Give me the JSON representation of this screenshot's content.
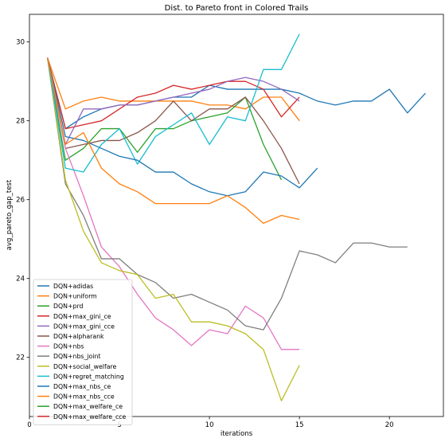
{
  "chart_data": {
    "type": "line",
    "title": "Dist. to Pareto front in Colored Trails",
    "xlabel": "iterations",
    "ylabel": "avg_pareto_gap_test",
    "xlim": [
      0,
      23
    ],
    "ylim": [
      20.5,
      30.7
    ],
    "xticks": [
      0,
      5,
      10,
      15,
      20
    ],
    "yticks": [
      22,
      24,
      26,
      28,
      30
    ],
    "grid": false,
    "legend_position": "lower-left",
    "series": [
      {
        "name": "DQN+adidas",
        "color": "#1f77b4",
        "x": [
          1,
          2,
          3,
          4,
          5,
          6,
          7,
          8,
          9,
          10,
          11,
          12,
          13,
          14,
          15,
          16,
          17,
          18,
          19,
          20,
          21,
          22
        ],
        "y": [
          29.6,
          27.8,
          28.1,
          28.3,
          28.4,
          28.4,
          28.5,
          28.6,
          28.6,
          28.9,
          28.8,
          28.8,
          28.8,
          28.8,
          28.7,
          28.5,
          28.4,
          28.5,
          28.5,
          28.8,
          28.2,
          28.7
        ]
      },
      {
        "name": "DQN+uniform",
        "color": "#ff7f0e",
        "x": [
          1,
          2,
          3,
          4,
          5,
          6,
          7,
          8,
          9,
          10,
          11,
          12,
          13,
          14,
          15
        ],
        "y": [
          29.6,
          28.3,
          28.5,
          28.6,
          28.5,
          28.5,
          28.5,
          28.5,
          28.5,
          28.4,
          28.4,
          28.3,
          28.6,
          28.6,
          28.0
        ]
      },
      {
        "name": "DQN+prd",
        "color": "#2ca02c",
        "x": [
          1,
          2,
          3,
          4,
          5,
          6,
          7,
          8,
          9,
          10,
          11,
          12,
          13,
          14
        ],
        "y": [
          29.6,
          27.0,
          27.3,
          27.8,
          27.8,
          27.2,
          27.8,
          27.8,
          28.0,
          28.1,
          28.2,
          28.6,
          27.4,
          26.5
        ]
      },
      {
        "name": "DQN+max_gini_ce",
        "color": "#d62728",
        "x": [
          1,
          2,
          3,
          4,
          5,
          6,
          7,
          8,
          9,
          10,
          11,
          12,
          13,
          14,
          15
        ],
        "y": [
          29.6,
          27.8,
          27.9,
          28.0,
          28.3,
          28.6,
          28.7,
          28.9,
          28.8,
          28.9,
          29.0,
          29.0,
          28.8,
          28.1,
          28.6
        ]
      },
      {
        "name": "DQN+max_gini_cce",
        "color": "#9467bd",
        "x": [
          1,
          2,
          3,
          4,
          5,
          6,
          7,
          8,
          9,
          10,
          11,
          12,
          13,
          14,
          15
        ],
        "y": [
          29.6,
          27.4,
          28.3,
          28.3,
          28.4,
          28.4,
          28.5,
          28.6,
          28.7,
          28.8,
          29.0,
          29.1,
          29.0,
          28.8,
          28.5
        ]
      },
      {
        "name": "DQN+alpharank",
        "color": "#8c564b",
        "x": [
          1,
          2,
          3,
          4,
          5,
          6,
          7,
          8,
          9,
          10,
          11,
          12,
          13,
          14,
          15
        ],
        "y": [
          29.6,
          27.3,
          27.4,
          27.5,
          27.5,
          27.7,
          28.0,
          28.5,
          28.0,
          28.3,
          28.3,
          28.6,
          28.0,
          27.3,
          26.4
        ]
      },
      {
        "name": "DQN+nbs",
        "color": "#e377c2",
        "x": [
          1,
          2,
          3,
          4,
          5,
          6,
          7,
          8,
          9,
          10,
          11,
          12,
          13,
          14,
          15
        ],
        "y": [
          29.6,
          27.3,
          26.1,
          24.8,
          24.3,
          23.6,
          23.0,
          22.7,
          22.3,
          22.7,
          22.6,
          23.3,
          23.0,
          22.2,
          22.2
        ]
      },
      {
        "name": "DQN+nbs_joint",
        "color": "#7f7f7f",
        "x": [
          1,
          2,
          3,
          4,
          5,
          6,
          7,
          8,
          9,
          10,
          11,
          12,
          13,
          14,
          15,
          16,
          17,
          18,
          19,
          20,
          21
        ],
        "y": [
          29.6,
          26.4,
          25.6,
          24.5,
          24.5,
          24.1,
          23.9,
          23.5,
          23.6,
          23.4,
          23.2,
          22.8,
          22.7,
          23.5,
          24.7,
          24.6,
          24.4,
          24.9,
          24.9,
          24.8,
          24.8
        ]
      },
      {
        "name": "DQN+social_welfare",
        "color": "#bcbd22",
        "x": [
          1,
          2,
          3,
          4,
          5,
          6,
          7,
          8,
          9,
          10,
          11,
          12,
          13,
          14,
          15
        ],
        "y": [
          29.6,
          26.5,
          25.2,
          24.4,
          24.2,
          24.1,
          23.5,
          23.6,
          22.9,
          22.9,
          22.8,
          22.6,
          22.2,
          20.9,
          21.8
        ]
      },
      {
        "name": "DQN+regret_matching",
        "color": "#17becf",
        "x": [
          1,
          2,
          3,
          4,
          5,
          6,
          7,
          8,
          9,
          10,
          11,
          12,
          13,
          14,
          15
        ],
        "y": [
          29.6,
          26.8,
          26.7,
          27.4,
          27.8,
          26.9,
          27.6,
          27.9,
          28.2,
          27.4,
          28.1,
          28.0,
          29.3,
          29.3,
          30.2
        ]
      },
      {
        "name": "DQN+max_nbs_ce",
        "color": "#1f77b4",
        "x": [
          1,
          2,
          3,
          4,
          5,
          6,
          7,
          8,
          9,
          10,
          11,
          12,
          13,
          14,
          15,
          16
        ],
        "y": [
          29.6,
          27.6,
          27.5,
          27.3,
          27.1,
          27.0,
          26.7,
          26.7,
          26.4,
          26.2,
          26.1,
          26.2,
          26.7,
          26.6,
          26.3,
          26.8
        ]
      },
      {
        "name": "DQN+max_nbs_cce",
        "color": "#ff7f0e",
        "x": [
          1,
          2,
          3,
          4,
          5,
          6,
          7,
          8,
          9,
          10,
          11,
          12,
          13,
          14,
          15
        ],
        "y": [
          29.6,
          27.4,
          27.7,
          26.8,
          26.4,
          26.2,
          25.9,
          25.9,
          25.9,
          25.9,
          26.1,
          25.8,
          25.4,
          25.6,
          25.5
        ]
      },
      {
        "name": "DQN+max_welfare_ce",
        "color": "#2ca02c",
        "x": [
          1
        ],
        "y": [
          29.6
        ]
      },
      {
        "name": "DQN+max_welfare_cce",
        "color": "#d62728",
        "x": [
          1
        ],
        "y": [
          29.6
        ]
      }
    ]
  }
}
